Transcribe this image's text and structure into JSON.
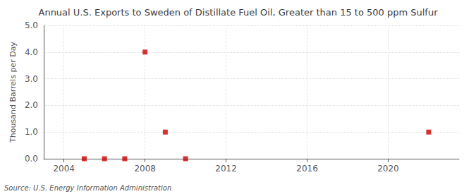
{
  "chart_data": {
    "type": "scatter",
    "title": "Annual U.S. Exports to Sweden of Distillate Fuel Oil, Greater than 15 to 500 ppm Sulfur",
    "ylabel": "Thousand Barrels per Day",
    "annotations": [
      "Source: U.S. Energy Information Administration"
    ],
    "x": [
      2005,
      2006,
      2007,
      2008,
      2009,
      2010,
      2022
    ],
    "values": [
      0.0,
      0.0,
      0.0,
      4.0,
      1.0,
      0.0,
      1.0
    ],
    "color": "#cc0000",
    "marker": "square",
    "xlim": [
      2003.0,
      2023.5
    ],
    "xticks": [
      2004,
      2008,
      2012,
      2016,
      2020
    ],
    "ylim": [
      0.0,
      5.0
    ],
    "yticks": [
      {
        "value": 0.0,
        "label": "0.0"
      },
      {
        "value": 1.0,
        "label": "1.0"
      },
      {
        "value": 2.0,
        "label": "2.0"
      },
      {
        "value": 3.0,
        "label": "3.0"
      },
      {
        "value": 4.0,
        "label": "4.0"
      },
      {
        "value": 5.0,
        "label": "5.0"
      }
    ],
    "grid": true
  }
}
